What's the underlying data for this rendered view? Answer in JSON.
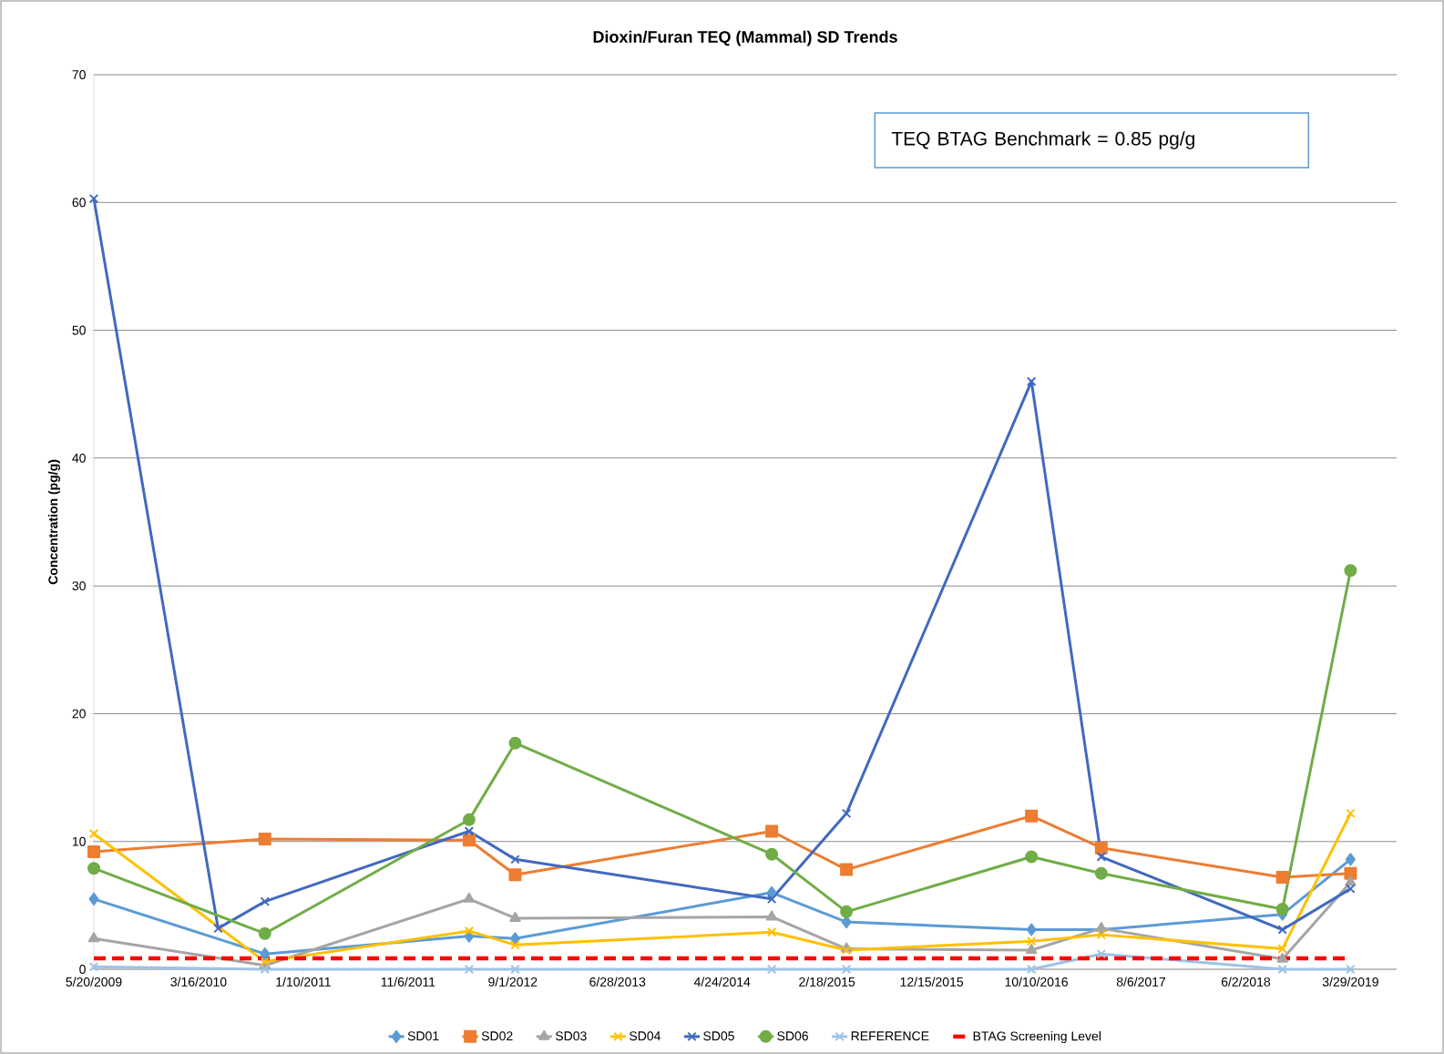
{
  "chart_data": {
    "type": "line",
    "title": "Dioxin/Furan TEQ (Mammal) SD Trends",
    "ylabel": "Concentration (pg/g)",
    "annotations": [
      "TEQ BTAG Benchmark = 0.85 pg/g"
    ],
    "xlim": [
      "2009-05-20",
      "2019-08-08"
    ],
    "ylim": [
      0,
      70
    ],
    "yticks": [
      0,
      10,
      20,
      30,
      40,
      50,
      60,
      70
    ],
    "xticks": [
      {
        "value": "2009-05-20",
        "label": "5/20/2009"
      },
      {
        "value": "2010-03-16",
        "label": "3/16/2010"
      },
      {
        "value": "2011-01-10",
        "label": "1/10/2011"
      },
      {
        "value": "2011-11-06",
        "label": "11/6/2011"
      },
      {
        "value": "2012-09-01",
        "label": "9/1/2012"
      },
      {
        "value": "2013-06-28",
        "label": "6/28/2013"
      },
      {
        "value": "2014-04-24",
        "label": "4/24/2014"
      },
      {
        "value": "2015-02-18",
        "label": "2/18/2015"
      },
      {
        "value": "2015-12-15",
        "label": "12/15/2015"
      },
      {
        "value": "2016-10-10",
        "label": "10/10/2016"
      },
      {
        "value": "2017-08-06",
        "label": "8/6/2017"
      },
      {
        "value": "2018-06-02",
        "label": "6/2/2018"
      },
      {
        "value": "2019-03-29",
        "label": "3/29/2019"
      }
    ],
    "grid": "y",
    "legend": "bottom",
    "series": [
      {
        "name": "SD01",
        "color": "#5b9bd5",
        "marker": "diamond",
        "x": [
          "2009-05-20",
          "2010-09-22",
          "2012-04-29",
          "2012-09-08",
          "2014-09-13",
          "2015-04-15",
          "2016-09-26",
          "2017-04-14",
          "2018-09-15",
          "2019-03-29"
        ],
        "values": [
          5.5,
          1.2,
          2.6,
          2.4,
          6.0,
          3.7,
          3.1,
          3.1,
          4.3,
          8.6
        ]
      },
      {
        "name": "SD02",
        "color": "#ed7d31",
        "marker": "square",
        "x": [
          "2009-05-20",
          "2010-09-22",
          "2012-04-29",
          "2012-09-08",
          "2014-09-13",
          "2015-04-15",
          "2016-09-26",
          "2017-04-14",
          "2018-09-15",
          "2019-03-29"
        ],
        "values": [
          9.2,
          10.2,
          10.1,
          7.4,
          10.8,
          7.8,
          12.0,
          9.5,
          7.2,
          7.5
        ]
      },
      {
        "name": "SD03",
        "color": "#a5a5a5",
        "marker": "triangle",
        "x": [
          "2009-05-20",
          "2010-09-22",
          "2012-04-29",
          "2012-09-08",
          "2014-09-13",
          "2015-04-15",
          "2016-09-26",
          "2017-04-14",
          "2018-09-15",
          "2019-03-29"
        ],
        "values": [
          2.4,
          0.3,
          5.5,
          4.0,
          4.1,
          1.6,
          1.5,
          3.2,
          0.8,
          6.8
        ]
      },
      {
        "name": "SD04",
        "color": "#ffc000",
        "marker": "cross",
        "x": [
          "2009-05-20",
          "2010-09-22",
          "2012-04-29",
          "2012-09-08",
          "2014-09-13",
          "2015-04-15",
          "2016-09-26",
          "2017-04-14",
          "2018-09-15",
          "2019-03-29"
        ],
        "values": [
          10.6,
          0.6,
          3.0,
          1.9,
          2.9,
          1.5,
          2.2,
          2.7,
          1.6,
          12.2
        ]
      },
      {
        "name": "SD05",
        "color": "#4169c0",
        "marker": "cross",
        "x": [
          "2009-05-20",
          "2010-05-11",
          "2010-09-22",
          "2012-04-29",
          "2012-09-08",
          "2014-09-13",
          "2015-04-15",
          "2016-09-26",
          "2017-04-14",
          "2018-09-15",
          "2019-03-29"
        ],
        "values": [
          60.3,
          3.2,
          5.3,
          10.8,
          8.6,
          5.5,
          12.2,
          46.0,
          8.8,
          3.1,
          6.3
        ]
      },
      {
        "name": "SD06",
        "color": "#70ad47",
        "marker": "circle",
        "x": [
          "2009-05-20",
          "2010-09-22",
          "2012-04-29",
          "2012-09-08",
          "2014-09-13",
          "2015-04-15",
          "2016-09-26",
          "2017-04-14",
          "2018-09-15",
          "2019-03-29"
        ],
        "values": [
          7.9,
          2.8,
          11.7,
          17.7,
          9.0,
          4.5,
          8.8,
          7.5,
          4.7,
          31.2
        ]
      },
      {
        "name": "REFERENCE",
        "color": "#9dc3e6",
        "marker": "cross",
        "x": [
          "2009-05-20",
          "2010-09-22",
          "2012-04-29",
          "2012-09-08",
          "2014-09-13",
          "2015-04-15",
          "2016-09-26",
          "2017-04-14",
          "2018-09-15",
          "2019-03-29"
        ],
        "values": [
          0.2,
          0,
          0,
          0,
          0,
          0,
          0,
          1.2,
          0,
          0
        ]
      }
    ],
    "ref_lines": [
      {
        "axis": "y",
        "value": 0.85,
        "label": "BTAG Screening Level",
        "color": "#ff0000",
        "line_style": "dashed"
      }
    ]
  }
}
